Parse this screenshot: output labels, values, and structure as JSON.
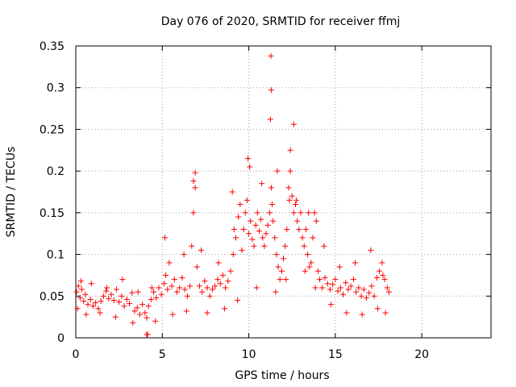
{
  "chart_data": {
    "type": "scatter",
    "title": "Day 076 of 2020, SRMTID for receiver ffmj",
    "xlabel": "GPS time / hours",
    "ylabel": "SRMTID / TECUs",
    "xlim": [
      0,
      24
    ],
    "ylim": [
      0,
      0.35
    ],
    "xticks": [
      0,
      5,
      10,
      15,
      20
    ],
    "yticks": [
      0,
      0.05,
      0.1,
      0.15,
      0.2,
      0.25,
      0.3,
      0.35
    ],
    "xtick_labels": [
      "0",
      "5",
      "10",
      "15",
      "20"
    ],
    "ytick_labels": [
      "0",
      "0.05",
      "0.1",
      "0.15",
      "0.2",
      "0.25",
      "0.3",
      "0.35"
    ],
    "grid": true,
    "marker": "+",
    "color": "#ff0000",
    "series": [
      {
        "name": "SRMTID",
        "x": [
          0.05,
          0.15,
          0.25,
          0.35,
          0.45,
          0.55,
          0.7,
          0.85,
          1.0,
          1.15,
          1.3,
          1.45,
          1.6,
          1.75,
          1.9,
          2.05,
          2.2,
          2.35,
          2.5,
          2.65,
          2.8,
          2.95,
          3.1,
          3.25,
          3.4,
          3.55,
          3.7,
          3.85,
          4.0,
          4.1,
          4.2,
          4.35,
          4.5,
          4.65,
          4.8,
          4.95,
          5.1,
          5.2,
          5.3,
          5.4,
          5.55,
          5.7,
          5.85,
          6.0,
          6.15,
          6.3,
          6.45,
          6.6,
          6.7,
          6.8,
          6.9,
          7.0,
          7.15,
          7.3,
          7.45,
          7.6,
          7.75,
          7.9,
          8.05,
          8.2,
          8.35,
          8.5,
          8.65,
          8.8,
          8.95,
          9.1,
          9.25,
          9.4,
          9.5,
          9.6,
          9.7,
          9.8,
          9.9,
          10.0,
          10.1,
          10.2,
          10.3,
          10.4,
          10.5,
          10.6,
          10.7,
          10.8,
          10.9,
          11.0,
          11.1,
          11.2,
          11.3,
          11.35,
          11.4,
          11.5,
          11.6,
          11.7,
          11.8,
          11.9,
          12.0,
          12.1,
          12.2,
          12.3,
          12.4,
          12.5,
          12.6,
          12.7,
          12.8,
          12.9,
          13.0,
          13.1,
          13.2,
          13.3,
          13.4,
          13.5,
          13.6,
          13.7,
          13.8,
          13.9,
          14.0,
          14.1,
          14.25,
          14.4,
          14.55,
          14.7,
          14.85,
          15.0,
          15.15,
          15.3,
          15.45,
          15.6,
          15.75,
          15.9,
          16.05,
          16.2,
          16.35,
          16.5,
          16.65,
          16.8,
          16.95,
          17.1,
          17.25,
          17.4,
          17.55,
          17.7,
          17.85,
          18.0,
          18.1,
          4.1,
          4.15,
          6.9,
          6.8,
          9.15,
          10.05,
          11.25,
          11.3,
          11.28,
          12.4,
          12.6,
          12.35,
          0.1,
          0.6,
          1.4,
          2.3,
          3.3,
          4.6,
          5.6,
          6.4,
          7.6,
          8.6,
          9.35,
          10.45,
          11.55,
          12.15,
          13.25,
          13.85,
          14.75,
          15.65,
          16.55,
          17.45,
          17.9,
          0.3,
          0.9,
          1.8,
          2.7,
          3.6,
          4.4,
          5.15,
          6.25,
          7.25,
          8.25,
          9.05,
          9.95,
          10.75,
          11.65,
          12.75,
          13.45,
          14.35,
          15.25,
          16.15,
          17.05,
          17.75
        ],
        "y": [
          0.055,
          0.062,
          0.048,
          0.058,
          0.044,
          0.052,
          0.04,
          0.046,
          0.038,
          0.042,
          0.035,
          0.044,
          0.05,
          0.056,
          0.047,
          0.052,
          0.045,
          0.058,
          0.043,
          0.05,
          0.038,
          0.046,
          0.041,
          0.054,
          0.032,
          0.036,
          0.028,
          0.04,
          0.03,
          0.024,
          0.038,
          0.046,
          0.055,
          0.048,
          0.06,
          0.052,
          0.065,
          0.075,
          0.058,
          0.09,
          0.062,
          0.07,
          0.055,
          0.06,
          0.072,
          0.058,
          0.05,
          0.062,
          0.11,
          0.15,
          0.18,
          0.085,
          0.062,
          0.055,
          0.068,
          0.06,
          0.05,
          0.058,
          0.062,
          0.07,
          0.065,
          0.075,
          0.06,
          0.068,
          0.08,
          0.1,
          0.12,
          0.145,
          0.16,
          0.105,
          0.13,
          0.15,
          0.165,
          0.125,
          0.14,
          0.118,
          0.11,
          0.135,
          0.15,
          0.128,
          0.142,
          0.12,
          0.11,
          0.125,
          0.135,
          0.15,
          0.18,
          0.16,
          0.14,
          0.12,
          0.1,
          0.085,
          0.07,
          0.08,
          0.095,
          0.11,
          0.13,
          0.18,
          0.2,
          0.17,
          0.15,
          0.16,
          0.14,
          0.13,
          0.15,
          0.12,
          0.11,
          0.13,
          0.1,
          0.085,
          0.09,
          0.12,
          0.15,
          0.14,
          0.08,
          0.07,
          0.06,
          0.072,
          0.065,
          0.058,
          0.064,
          0.07,
          0.056,
          0.06,
          0.052,
          0.066,
          0.058,
          0.062,
          0.07,
          0.055,
          0.06,
          0.05,
          0.058,
          0.048,
          0.054,
          0.062,
          0.05,
          0.072,
          0.08,
          0.09,
          0.07,
          0.06,
          0.055,
          0.004,
          0.004,
          0.198,
          0.188,
          0.13,
          0.205,
          0.262,
          0.297,
          0.338,
          0.225,
          0.256,
          0.165,
          0.035,
          0.028,
          0.03,
          0.025,
          0.018,
          0.02,
          0.028,
          0.032,
          0.03,
          0.035,
          0.045,
          0.06,
          0.055,
          0.07,
          0.08,
          0.06,
          0.04,
          0.03,
          0.028,
          0.035,
          0.03,
          0.068,
          0.065,
          0.06,
          0.07,
          0.055,
          0.06,
          0.12,
          0.1,
          0.105,
          0.09,
          0.175,
          0.215,
          0.185,
          0.2,
          0.165,
          0.15,
          0.11,
          0.085,
          0.09,
          0.105,
          0.075
        ]
      }
    ]
  }
}
